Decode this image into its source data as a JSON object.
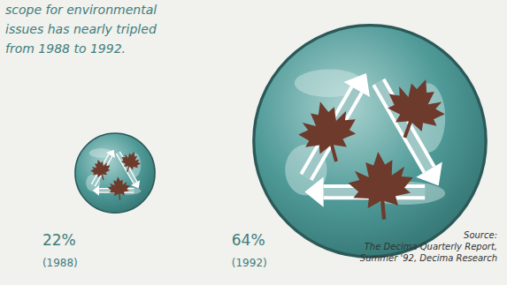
{
  "chart_data": {
    "type": "pictogram",
    "title": "scope for environmental issues has nearly tripled from 1988 to 1992.",
    "categories": [
      "(1988)",
      "(1992)"
    ],
    "values": [
      22,
      64
    ],
    "value_labels": [
      "22%",
      "64%"
    ],
    "data_labels": true,
    "color": "#4f9a98",
    "source": [
      "Source:",
      "The Decima Quarterly Report,",
      "Summer '92, Decima Research"
    ]
  }
}
